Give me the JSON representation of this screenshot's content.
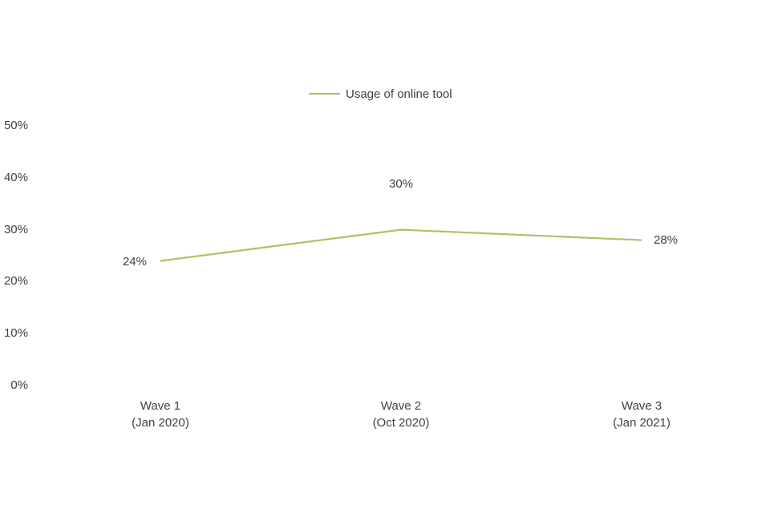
{
  "chart_data": {
    "type": "line",
    "title": "",
    "xlabel": "",
    "ylabel": "",
    "grid": false,
    "legend_position": "top",
    "ylim": [
      0,
      50
    ],
    "y_ticks": [
      "50%",
      "40%",
      "30%",
      "20%",
      "10%",
      "0%"
    ],
    "y_tick_values": [
      50,
      40,
      30,
      20,
      10,
      0
    ],
    "categories": [
      [
        "Wave 1",
        "(Jan 2020)"
      ],
      [
        "Wave 2",
        "(Oct 2020)"
      ],
      [
        "Wave 3",
        "(Jan 2021)"
      ]
    ],
    "series": [
      {
        "name": "Usage of online tool",
        "values": [
          24,
          30,
          28
        ],
        "color": "#a5c663"
      }
    ],
    "data_labels": [
      "24%",
      "30%",
      "28%"
    ],
    "data_label_positions": [
      "left",
      "above",
      "right"
    ],
    "text_color": "#404040",
    "background_color": "#ffffff"
  }
}
